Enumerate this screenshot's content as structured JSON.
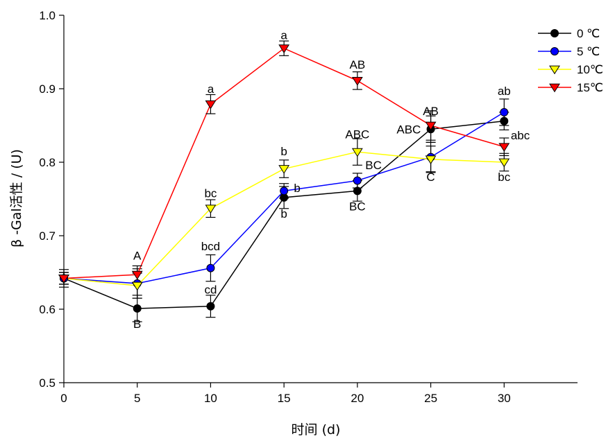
{
  "chart_data": {
    "type": "line",
    "title": "",
    "xlabel": "时间 (d)",
    "ylabel": "β -Gal活性 / (U)",
    "xlim": [
      0,
      35
    ],
    "ylim": [
      0.5,
      1.0
    ],
    "xticks": [
      0,
      5,
      10,
      15,
      20,
      25,
      30
    ],
    "xtick_labels": [
      "0",
      "5",
      "10",
      "15",
      "20",
      "25",
      "30"
    ],
    "yticks": [
      0.5,
      0.6,
      0.7,
      0.8,
      0.9,
      1.0
    ],
    "ytick_labels": [
      "0.5",
      "0.6",
      "0.7",
      "0.8",
      "0.9",
      "1.0"
    ],
    "x": [
      0,
      5,
      10,
      15,
      20,
      25,
      30
    ],
    "legend_position": "top-right",
    "series": [
      {
        "name": "0 ℃",
        "color": "#000000",
        "marker_fill": "#000000",
        "marker": "circle",
        "values": [
          0.642,
          0.601,
          0.604,
          0.752,
          0.761,
          0.845,
          0.856
        ],
        "errors": [
          0.012,
          0.018,
          0.015,
          0.015,
          0.014,
          0.018,
          0.012
        ]
      },
      {
        "name": "5 ℃",
        "color": "#0000ff",
        "marker_fill": "#0000ff",
        "marker": "circle",
        "values": [
          0.642,
          0.635,
          0.656,
          0.761,
          0.775,
          0.807,
          0.868
        ],
        "errors": [
          0.008,
          0.02,
          0.018,
          0.01,
          0.01,
          0.02,
          0.018
        ]
      },
      {
        "name": "10℃",
        "color": "#ffff00",
        "marker_fill": "#ffff00",
        "marker": "triangle-down",
        "values": [
          0.642,
          0.632,
          0.737,
          0.791,
          0.814,
          0.804,
          0.8
        ],
        "errors": [
          0.008,
          0.017,
          0.012,
          0.012,
          0.018,
          0.018,
          0.012
        ]
      },
      {
        "name": "15℃",
        "color": "#ff0000",
        "marker_fill": "#ff0000",
        "marker": "triangle-down",
        "values": [
          0.642,
          0.647,
          0.879,
          0.955,
          0.911,
          0.85,
          0.821
        ],
        "errors": [
          0.008,
          0.012,
          0.013,
          0.01,
          0.012,
          0.02,
          0.012
        ]
      }
    ],
    "annotations": [
      {
        "text": "A",
        "x": 5,
        "y": 0.673
      },
      {
        "text": "B",
        "x": 5,
        "y": 0.58
      },
      {
        "text": "a",
        "x": 10,
        "y": 0.9
      },
      {
        "text": "bc",
        "x": 10,
        "y": 0.758
      },
      {
        "text": "bcd",
        "x": 10,
        "y": 0.686
      },
      {
        "text": "cd",
        "x": 10,
        "y": 0.627
      },
      {
        "text": "a",
        "x": 15,
        "y": 0.973
      },
      {
        "text": "b",
        "x": 15,
        "y": 0.815
      },
      {
        "text": "b",
        "x": 15.9,
        "y": 0.765
      },
      {
        "text": "b",
        "x": 15,
        "y": 0.73
      },
      {
        "text": "AB",
        "x": 20,
        "y": 0.933
      },
      {
        "text": "ABC",
        "x": 20,
        "y": 0.838
      },
      {
        "text": "BC",
        "x": 21.1,
        "y": 0.796
      },
      {
        "text": "BC",
        "x": 20,
        "y": 0.74
      },
      {
        "text": "AB",
        "x": 25,
        "y": 0.87
      },
      {
        "text": "ABC",
        "x": 23.5,
        "y": 0.845
      },
      {
        "text": "C",
        "x": 25,
        "y": 0.78
      },
      {
        "text": "ab",
        "x": 30,
        "y": 0.897
      },
      {
        "text": "abc",
        "x": 31.1,
        "y": 0.837
      },
      {
        "text": "bc",
        "x": 30,
        "y": 0.78
      }
    ]
  }
}
